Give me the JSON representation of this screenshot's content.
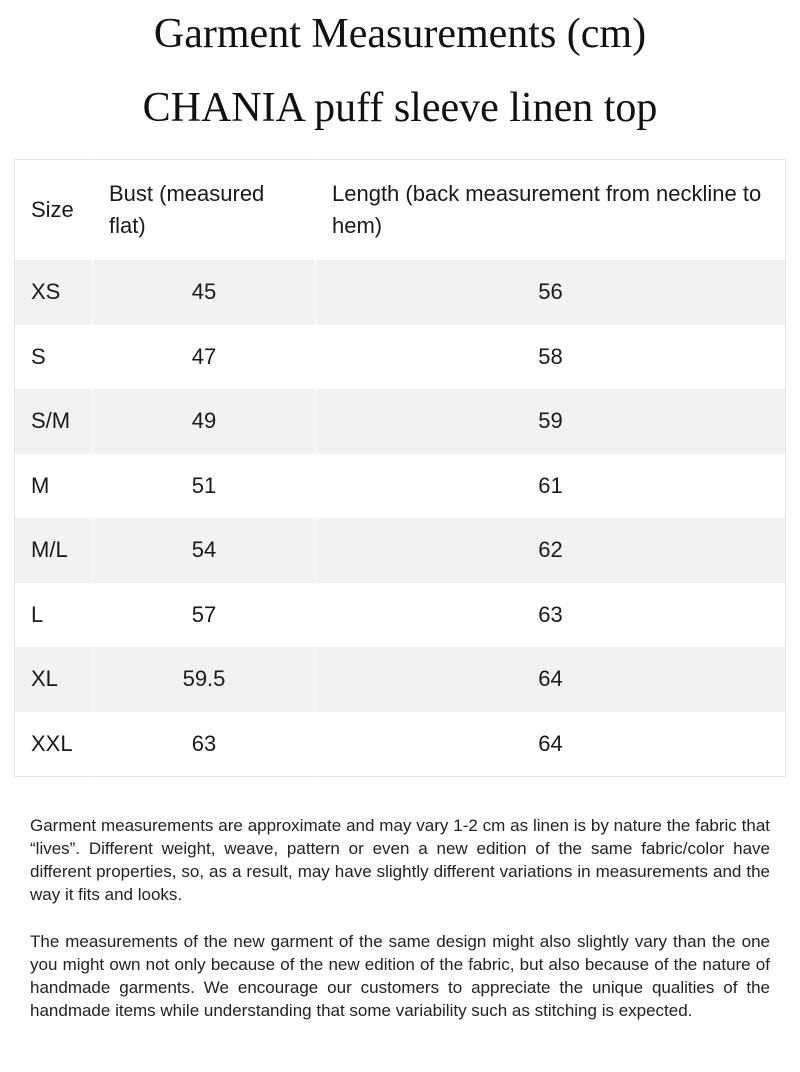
{
  "title_line1": "Garment Measurements (cm)",
  "title_line2": "CHANIA puff sleeve linen top",
  "table": {
    "headers": {
      "size": "Size",
      "bust": "Bust (measured flat)",
      "length": "Length (back measurement from neckline to hem)"
    },
    "rows": [
      {
        "size": "XS",
        "bust": "45",
        "length": "56"
      },
      {
        "size": "S",
        "bust": "47",
        "length": "58"
      },
      {
        "size": "S/M",
        "bust": "49",
        "length": "59"
      },
      {
        "size": "M",
        "bust": "51",
        "length": "61"
      },
      {
        "size": "M/L",
        "bust": "54",
        "length": "62"
      },
      {
        "size": "L",
        "bust": "57",
        "length": "63"
      },
      {
        "size": "XL",
        "bust": "59.5",
        "length": "64"
      },
      {
        "size": "XXL",
        "bust": "63",
        "length": "64"
      }
    ]
  },
  "notes": [
    "Garment measurements are approximate and may vary 1-2 cm as linen is by nature the fabric that “lives”. Different weight, weave, pattern or even a new edition of the same fabric/color have different properties, so, as a result, may have slightly different variations in measurements and the way it fits and looks.",
    "The measurements of the new garment of the same design might also slightly vary than the one you might own not only because of the new edition of the fabric, but also because of the nature of handmade garments. We encourage our customers to appreciate the unique qualities of the handmade items while understanding that some variability such as stitching is expected."
  ]
}
